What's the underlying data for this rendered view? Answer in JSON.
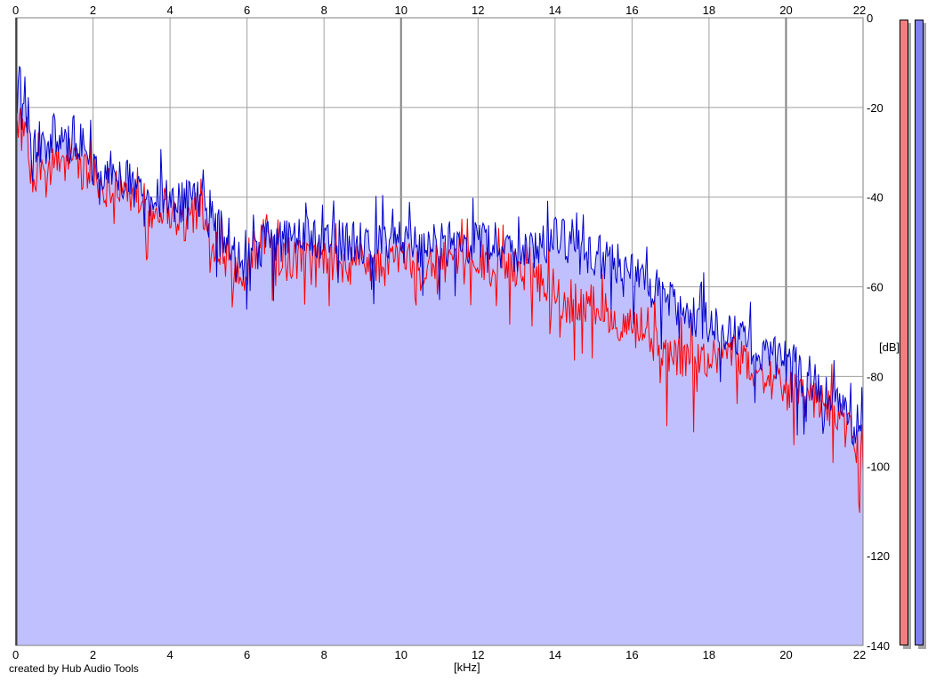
{
  "chart_data": {
    "type": "line",
    "title": "",
    "xlabel": "[kHz]",
    "ylabel": "[dB]",
    "xlim": [
      0,
      22
    ],
    "ylim": [
      -140,
      0
    ],
    "x_ticks": [
      0,
      2,
      4,
      6,
      8,
      10,
      12,
      14,
      16,
      18,
      20,
      22
    ],
    "y_ticks": [
      0,
      -20,
      -40,
      -60,
      -80,
      -100,
      -120,
      -140
    ],
    "grid": true,
    "series": [
      {
        "color": "#ff0000",
        "x": [
          0,
          0.1,
          0.25,
          0.4,
          0.6,
          0.8,
          1.0,
          1.2,
          1.4,
          1.6,
          1.8,
          2.0,
          2.3,
          2.6,
          2.9,
          3.2,
          3.5,
          3.8,
          4.1,
          4.4,
          4.7,
          5.0,
          5.3,
          5.6,
          5.9,
          6.2,
          6.5,
          6.8,
          7.1,
          7.5,
          8.0,
          8.5,
          9.0,
          9.5,
          10.0,
          10.5,
          11.0,
          11.5,
          12.0,
          12.5,
          13.0,
          13.5,
          14.0,
          14.3,
          14.6,
          15.0,
          15.5,
          16.0,
          16.5,
          17.0,
          17.5,
          18.0,
          18.5,
          19.0,
          19.5,
          20.0,
          20.5,
          21.0,
          21.5,
          21.8,
          22.0
        ],
        "y": [
          -25,
          -22,
          -28,
          -35,
          -32,
          -38,
          -30,
          -35,
          -29,
          -33,
          -35,
          -36,
          -38,
          -36,
          -40,
          -42,
          -44,
          -42,
          -44,
          -46,
          -43,
          -49,
          -51,
          -56,
          -57,
          -53,
          -48,
          -54,
          -55,
          -53,
          -54,
          -56,
          -54,
          -56,
          -53,
          -57,
          -54,
          -56,
          -53,
          -57,
          -56,
          -57,
          -60,
          -65,
          -63,
          -64,
          -67,
          -69,
          -72,
          -75,
          -76,
          -76,
          -74,
          -78,
          -80,
          -83,
          -85,
          -86,
          -91,
          -95,
          -98
        ],
        "dips": [
          [
            0.5,
            -42
          ],
          [
            3.4,
            -50
          ],
          [
            5.9,
            -62
          ],
          [
            14.5,
            -80
          ],
          [
            16.9,
            -90
          ],
          [
            17.6,
            -88
          ],
          [
            21.9,
            -108
          ]
        ]
      },
      {
        "color": "#0000cc",
        "x": [
          0,
          0.1,
          0.25,
          0.4,
          0.6,
          0.8,
          1.0,
          1.2,
          1.4,
          1.6,
          1.8,
          2.0,
          2.3,
          2.6,
          2.9,
          3.2,
          3.5,
          3.8,
          4.1,
          4.4,
          4.7,
          5.0,
          5.3,
          5.6,
          5.9,
          6.2,
          6.5,
          6.8,
          7.1,
          7.5,
          8.0,
          8.5,
          9.0,
          9.5,
          10.0,
          10.5,
          11.0,
          11.5,
          12.0,
          12.5,
          13.0,
          13.5,
          14.0,
          14.3,
          14.6,
          15.0,
          15.5,
          16.0,
          16.5,
          17.0,
          17.5,
          18.0,
          18.5,
          19.0,
          19.5,
          20.0,
          20.5,
          21.0,
          21.5,
          21.8,
          22.0
        ],
        "y": [
          -15,
          -10,
          -22,
          -30,
          -28,
          -32,
          -24,
          -30,
          -28,
          -30,
          -32,
          -34,
          -35,
          -34,
          -37,
          -38,
          -40,
          -40,
          -42,
          -41,
          -40,
          -45,
          -47,
          -52,
          -55,
          -52,
          -50,
          -50,
          -49,
          -49,
          -49,
          -50,
          -50,
          -51,
          -50,
          -51,
          -50,
          -52,
          -49,
          -51,
          -52,
          -52,
          -49,
          -50,
          -52,
          -53,
          -54,
          -57,
          -60,
          -63,
          -66,
          -68,
          -70,
          -72,
          -76,
          -76,
          -80,
          -84,
          -88,
          -91,
          -94
        ],
        "dips": [
          [
            0.4,
            -38
          ],
          [
            2.0,
            -46
          ],
          [
            6.0,
            -66
          ],
          [
            11.0,
            -64
          ],
          [
            19.2,
            -82
          ],
          [
            20.3,
            -93
          ]
        ]
      }
    ],
    "fill_color": "#c0c0ff",
    "meters": [
      {
        "color": "#f08080"
      },
      {
        "color": "#8080f0"
      }
    ]
  },
  "footer": {
    "credit": "created by Hub Audio Tools"
  }
}
